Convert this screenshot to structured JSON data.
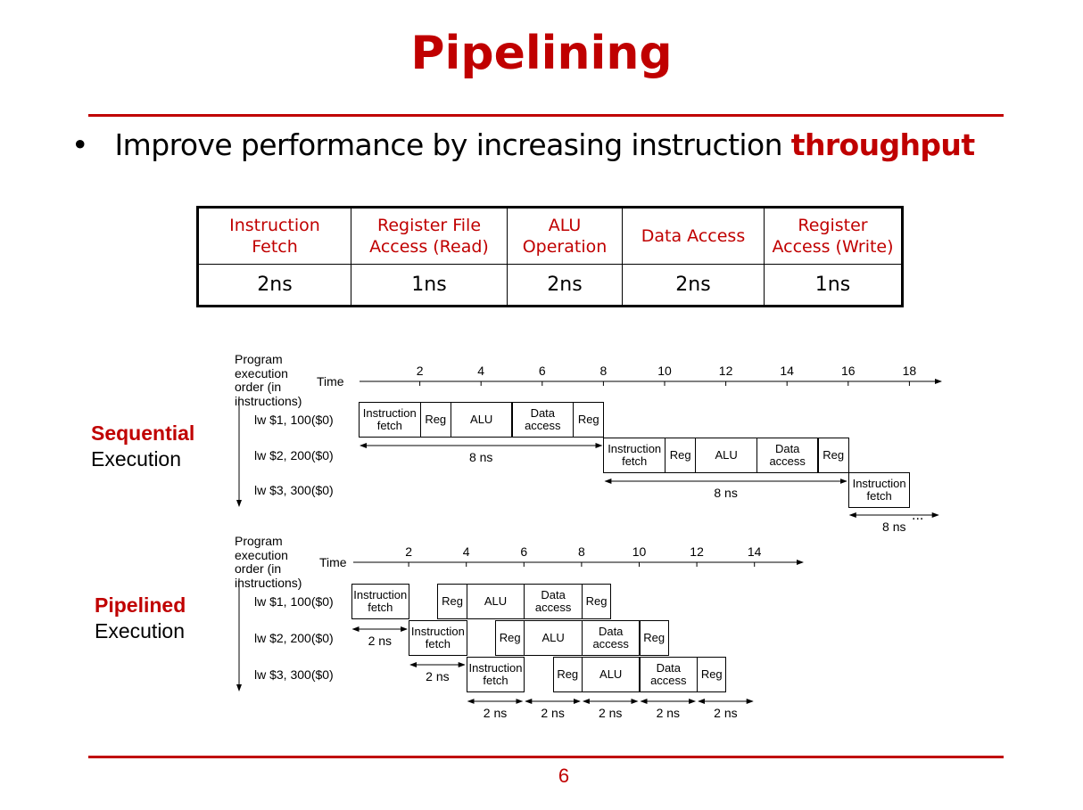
{
  "title": "Pipelining",
  "bullet": {
    "text": "Improve performance by increasing instruction",
    "emphasis": "throughput"
  },
  "table": {
    "header": [
      "Instruction Fetch",
      "Register File Access (Read)",
      "ALU Operation",
      "Data Access",
      "Register Access (Write)"
    ],
    "row": [
      "2ns",
      "1ns",
      "2ns",
      "2ns",
      "1ns"
    ]
  },
  "sequential": {
    "label": "Sequential",
    "label2": "Execution",
    "order_label": "Program execution order (in instructions)",
    "time_label": "Time",
    "ticks": [
      2,
      4,
      6,
      8,
      10,
      12,
      14,
      16,
      18
    ],
    "instructions": [
      "lw $1, 100($0)",
      "lw $2, 200($0)",
      "lw $3, 300($0)"
    ],
    "stages": [
      "Instruction fetch",
      "Reg",
      "ALU",
      "Data access",
      "Reg"
    ],
    "durations": [
      "8 ns",
      "8 ns",
      "8 ns"
    ],
    "ellipsis": "..."
  },
  "pipelined": {
    "label": "Pipelined",
    "label2": "Execution",
    "order_label": "Program execution order (in instructions)",
    "time_label": "Time",
    "ticks": [
      2,
      4,
      6,
      8,
      10,
      12,
      14
    ],
    "instructions": [
      "lw $1, 100($0)",
      "lw $2, 200($0)",
      "lw $3, 300($0)"
    ],
    "stages": [
      "Instruction fetch",
      "Reg",
      "ALU",
      "Data access",
      "Reg"
    ],
    "durations": [
      "2 ns",
      "2 ns",
      "2 ns",
      "2 ns",
      "2 ns",
      "2 ns",
      "2 ns"
    ]
  },
  "page_number": "6"
}
